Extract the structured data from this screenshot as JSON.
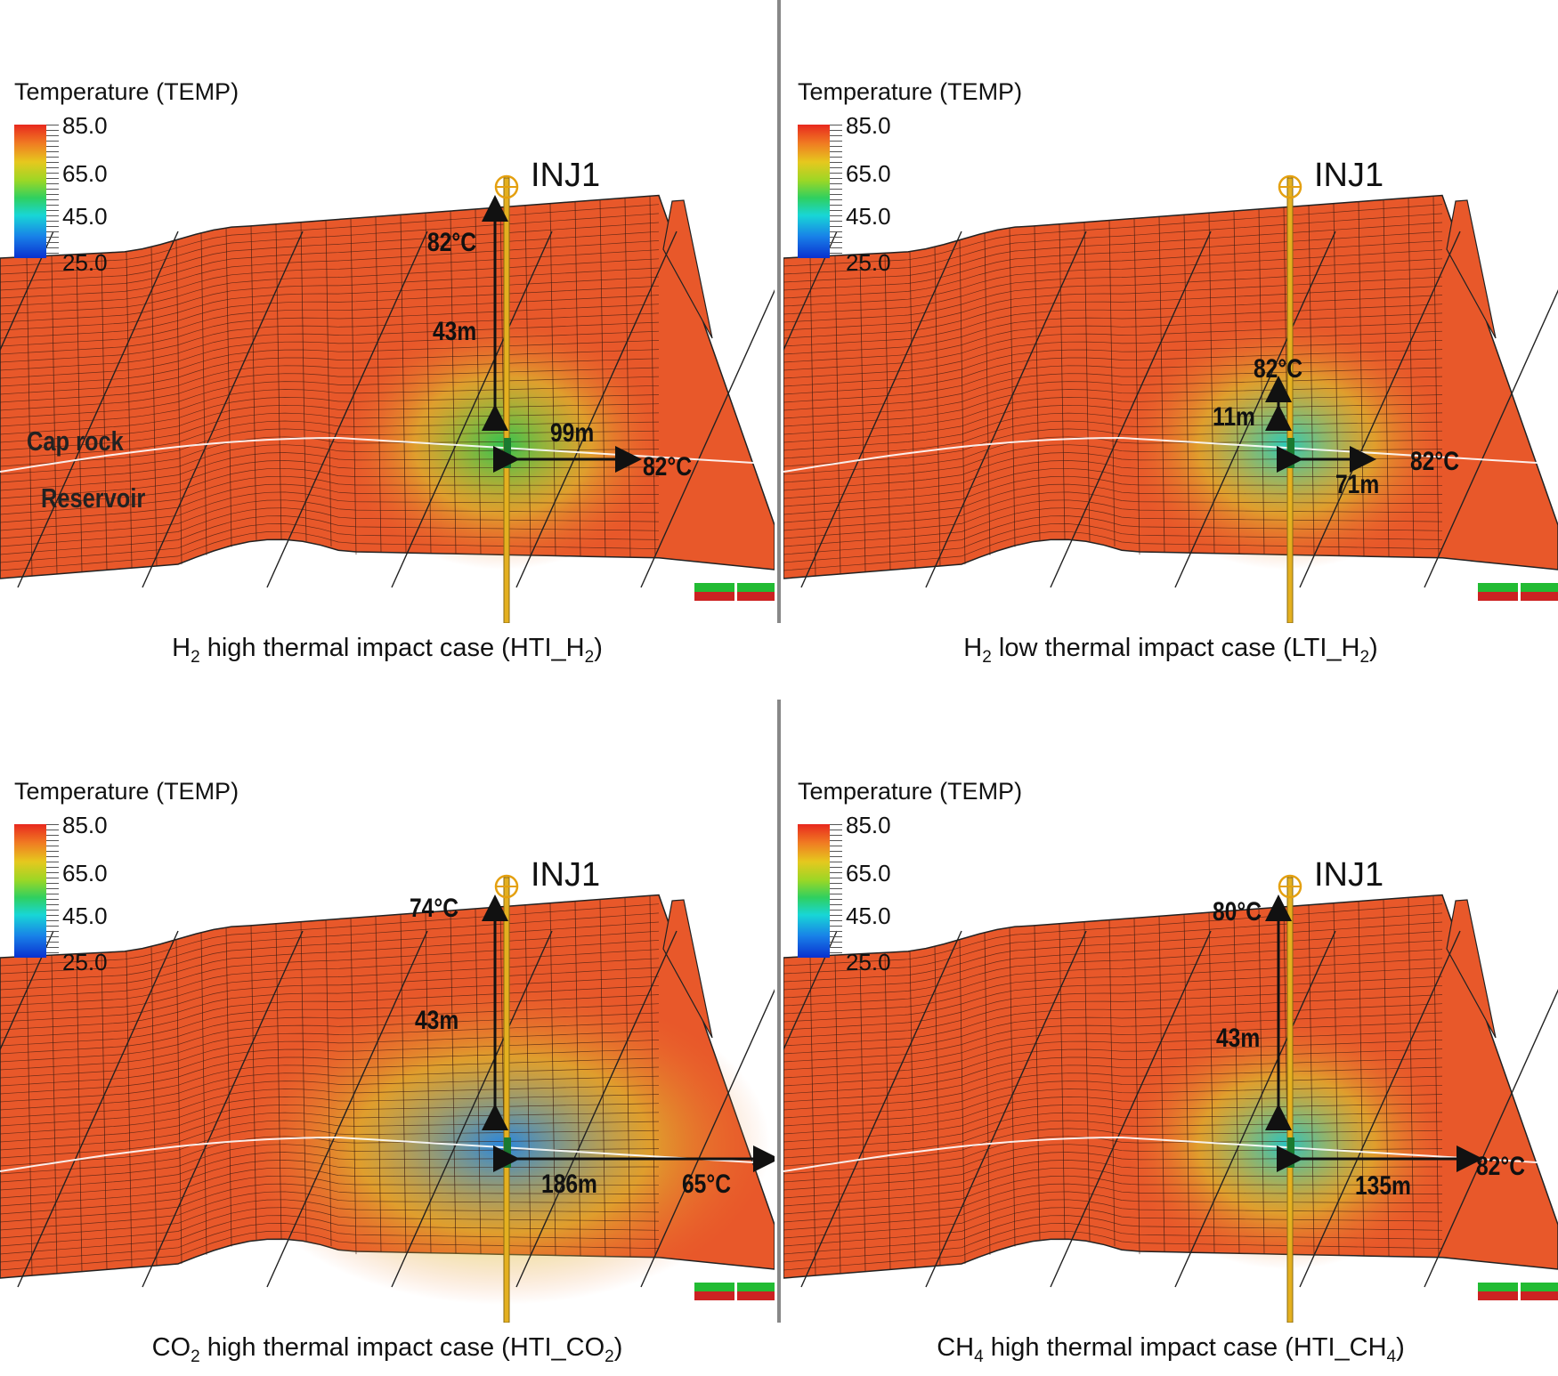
{
  "legend": {
    "title": "Temperature (TEMP)",
    "ticks": [
      "85.0",
      "65.0",
      "45.0",
      "25.0"
    ],
    "min": 25.0,
    "max": 85.0
  },
  "well_name": "INJ1",
  "layer_labels": {
    "cap_rock": "Cap rock",
    "reservoir": "Reservoir"
  },
  "panels": [
    {
      "caption_parts": [
        "H",
        "2",
        " high thermal impact case (HTI_H",
        "2",
        ")"
      ],
      "annotations": {
        "top_temp": "82°C",
        "vertical_distance": "43m",
        "lateral_distance": "99m",
        "lateral_temp": "82°C"
      },
      "plume_color": "#28c850"
    },
    {
      "caption_parts": [
        "H",
        "2",
        " low thermal impact case (LTI_H",
        "2",
        ")"
      ],
      "annotations": {
        "top_temp": "82°C",
        "vertical_distance": "11m",
        "lateral_distance": "71m",
        "lateral_temp": "82°C"
      },
      "plume_color": "#20d0c0"
    },
    {
      "caption_parts": [
        "CO",
        "2",
        " high thermal impact case (HTI_CO",
        "2",
        ")"
      ],
      "annotations": {
        "top_temp": "74°C",
        "vertical_distance": "43m",
        "lateral_distance": "186m",
        "lateral_temp": "65°C"
      },
      "plume_color": "#1e88e8"
    },
    {
      "caption_parts": [
        "CH",
        "4",
        " high thermal impact case (HTI_CH",
        "4",
        ")"
      ],
      "annotations": {
        "top_temp": "80°C",
        "vertical_distance": "43m",
        "lateral_distance": "135m",
        "lateral_temp": "82°C"
      },
      "plume_color": "#20c8c8"
    }
  ]
}
